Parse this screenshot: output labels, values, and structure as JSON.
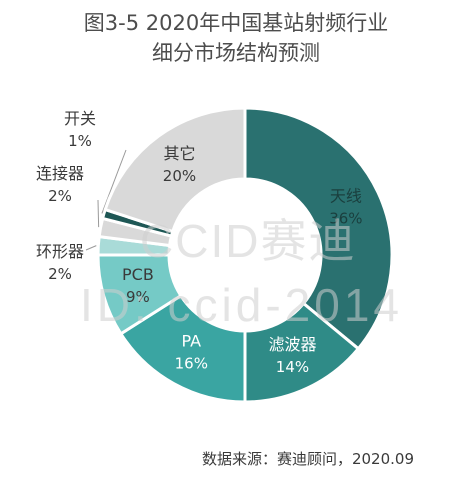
{
  "chart_data": {
    "type": "pie",
    "title": [
      "图3-5  2020年中国基站射频行业",
      "细分市场结构预测"
    ],
    "donut": true,
    "slices": [
      {
        "label": "天线",
        "value": 36,
        "value_label": "36%",
        "color": "#2a7170"
      },
      {
        "label": "滤波器",
        "value": 14,
        "value_label": "14%",
        "color": "#2f8b87"
      },
      {
        "label": "PA",
        "value": 16,
        "value_label": "16%",
        "color": "#3aa5a2"
      },
      {
        "label": "PCB",
        "value": 9,
        "value_label": "9%",
        "color": "#75cac6"
      },
      {
        "label": "环形器",
        "value": 2,
        "value_label": "2%",
        "color": "#a9dbd8"
      },
      {
        "label": "连接器",
        "value": 2,
        "value_label": "2%",
        "color": "#d9d9d9"
      },
      {
        "label": "开关",
        "value": 1,
        "value_label": "1%",
        "color": "#1e5755"
      },
      {
        "label": "其它",
        "value": 20,
        "value_label": "20%",
        "color": "#d9d9d9"
      }
    ]
  },
  "source_note": "数据来源：赛迪顾问，2020.09",
  "watermark": {
    "line1": "CCID赛迪",
    "line2": "ID: ccid-2014"
  }
}
